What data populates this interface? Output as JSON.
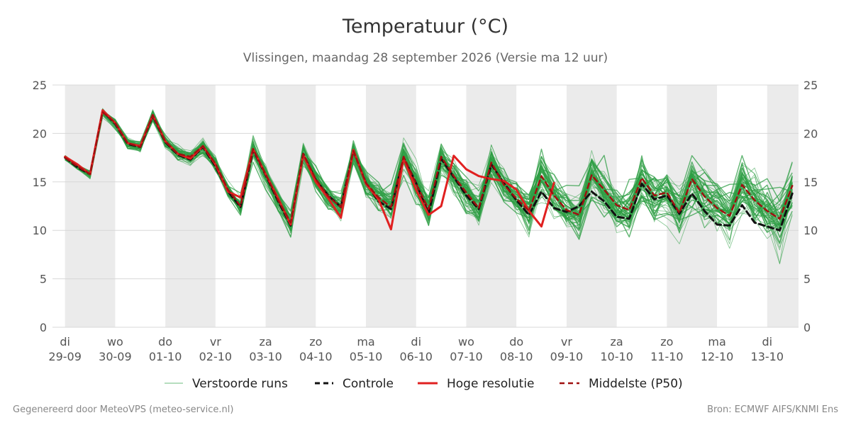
{
  "title": "Temperatuur (°C)",
  "subtitle": "Vlissingen, maandag 28 september 2026 (Versie ma 12 uur)",
  "footer": {
    "generated": "Gegenereerd door MeteoVPS (meteo-service.nl)",
    "source": "Bron: ECMWF AIFS/KNMI Ens"
  },
  "colors": {
    "ensemble": "#2e9e44",
    "control": "#111111",
    "hires": "#e02020",
    "median": "#a01010",
    "night_band": "#ebebeb",
    "grid": "#d8d8d8"
  },
  "chart_data": {
    "type": "line",
    "title": "Temperatuur (°C)",
    "ylim": [
      0,
      25
    ],
    "yticks": [
      0,
      5,
      10,
      15,
      20,
      25
    ],
    "x_start": "2026-09-29T00:00",
    "step_hours": 6,
    "xlim_steps": [
      -1,
      58.5
    ],
    "grid": "horizontal",
    "legend_position": "bottom",
    "shaded_periods_steps": [
      [
        0,
        4
      ],
      [
        8,
        12
      ],
      [
        16,
        20
      ],
      [
        24,
        28
      ],
      [
        32,
        36
      ],
      [
        40,
        44
      ],
      [
        48,
        52
      ],
      [
        56,
        58.5
      ]
    ],
    "x_ticks": [
      {
        "step": 0,
        "day": "di",
        "date": "29-09"
      },
      {
        "step": 4,
        "day": "wo",
        "date": "30-09"
      },
      {
        "step": 8,
        "day": "do",
        "date": "01-10"
      },
      {
        "step": 12,
        "day": "vr",
        "date": "02-10"
      },
      {
        "step": 16,
        "day": "za",
        "date": "03-10"
      },
      {
        "step": 20,
        "day": "zo",
        "date": "04-10"
      },
      {
        "step": 24,
        "day": "ma",
        "date": "05-10"
      },
      {
        "step": 28,
        "day": "di",
        "date": "06-10"
      },
      {
        "step": 32,
        "day": "wo",
        "date": "07-10"
      },
      {
        "step": 36,
        "day": "do",
        "date": "08-10"
      },
      {
        "step": 40,
        "day": "vr",
        "date": "09-10"
      },
      {
        "step": 44,
        "day": "za",
        "date": "10-10"
      },
      {
        "step": 48,
        "day": "zo",
        "date": "11-10"
      },
      {
        "step": 52,
        "day": "ma",
        "date": "12-10"
      },
      {
        "step": 56,
        "day": "di",
        "date": "13-10"
      }
    ],
    "ensemble_member_count": 50,
    "series": [
      {
        "name": "Controle",
        "style": "dashed",
        "values": [
          17.5,
          16.5,
          15.8,
          22.3,
          21.0,
          18.9,
          18.6,
          21.8,
          19.1,
          17.8,
          17.3,
          18.6,
          16.6,
          14.0,
          12.4,
          18.3,
          15.7,
          13.0,
          10.5,
          17.9,
          15.2,
          13.6,
          12.4,
          18.2,
          14.9,
          13.0,
          12.2,
          17.5,
          14.9,
          11.7,
          17.4,
          15.5,
          13.6,
          12.2,
          16.8,
          14.9,
          13.1,
          11.6,
          14.0,
          12.3,
          11.9,
          12.5,
          14.0,
          13.0,
          11.4,
          11.2,
          14.8,
          13.2,
          13.6,
          11.7,
          13.8,
          12.0,
          10.6,
          10.5,
          12.6,
          10.8,
          10.4,
          10.0,
          13.8
        ]
      },
      {
        "name": "Hoge resolutie",
        "style": "solid",
        "values": [
          17.6,
          16.8,
          15.8,
          22.4,
          21.1,
          19.0,
          18.7,
          21.9,
          19.2,
          17.9,
          17.4,
          18.7,
          16.8,
          14.0,
          13.4,
          18.4,
          15.8,
          13.3,
          10.6,
          17.8,
          15.0,
          13.3,
          11.3,
          18.3,
          14.8,
          13.2,
          10.1,
          17.4,
          14.2,
          11.6,
          12.5,
          17.7,
          16.3,
          15.6,
          15.3,
          15.1,
          14.2,
          12.0,
          10.4,
          14.9
        ]
      },
      {
        "name": "Middelste (P50)",
        "style": "dashed",
        "values": [
          17.5,
          16.6,
          15.8,
          22.2,
          21.1,
          19.0,
          18.6,
          21.9,
          19.2,
          17.9,
          17.6,
          18.7,
          16.9,
          14.2,
          12.5,
          18.4,
          15.8,
          13.1,
          10.8,
          17.9,
          15.3,
          13.5,
          12.4,
          18.2,
          14.9,
          13.4,
          12.4,
          17.6,
          14.8,
          12.2,
          17.6,
          15.6,
          13.9,
          12.3,
          17.0,
          14.7,
          13.3,
          12.0,
          15.6,
          13.6,
          12.1,
          11.6,
          15.7,
          14.2,
          12.6,
          12.1,
          15.4,
          13.6,
          13.9,
          11.8,
          15.3,
          13.5,
          12.3,
          11.5,
          14.7,
          13.1,
          12.0,
          11.2,
          14.6
        ]
      }
    ],
    "legend": [
      {
        "label": "Verstoorde runs",
        "kind": "thin-line"
      },
      {
        "label": "Controle",
        "kind": "dashed-black"
      },
      {
        "label": "Hoge resolutie",
        "kind": "solid-red"
      },
      {
        "label": "Middelste (P50)",
        "kind": "dashed-darkred"
      }
    ]
  }
}
